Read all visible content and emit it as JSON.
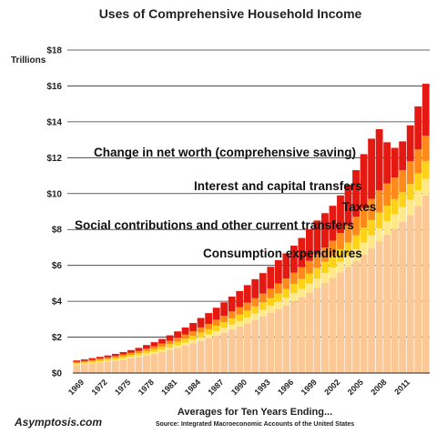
{
  "chart_data": {
    "type": "bar",
    "stacked": true,
    "title": "Uses of Comprehensive Household Income",
    "ylabel": "Trillions",
    "xlabel": "Averages for Ten Years Ending...",
    "source": "Source: Integrated Macroeconomic Accounts of the United States",
    "ylim": [
      0,
      18
    ],
    "yticks": [
      0,
      2,
      4,
      6,
      8,
      10,
      12,
      14,
      16,
      18
    ],
    "ytick_labels": [
      "$0",
      "$2",
      "$4",
      "$6",
      "$8",
      "$10",
      "$12",
      "$14",
      "$16",
      "$18"
    ],
    "grid": true,
    "categories": [
      "1969",
      "1970",
      "1971",
      "1972",
      "1973",
      "1974",
      "1975",
      "1976",
      "1977",
      "1978",
      "1979",
      "1980",
      "1981",
      "1982",
      "1983",
      "1984",
      "1985",
      "1986",
      "1987",
      "1988",
      "1989",
      "1990",
      "1991",
      "1992",
      "1993",
      "1994",
      "1995",
      "1996",
      "1997",
      "1998",
      "1999",
      "2000",
      "2001",
      "2002",
      "2003",
      "2004",
      "2005",
      "2006",
      "2007",
      "2008",
      "2009",
      "2010",
      "2011",
      "2012",
      "2013",
      "2014"
    ],
    "xtick_labels": [
      "1969",
      "1972",
      "1975",
      "1978",
      "1981",
      "1984",
      "1987",
      "1990",
      "1993",
      "1996",
      "1999",
      "2002",
      "2005",
      "2008",
      "2011"
    ],
    "series": [
      {
        "name": "Consumption expenditures",
        "color": "#fcc896",
        "values": [
          0.45,
          0.49,
          0.53,
          0.58,
          0.63,
          0.69,
          0.75,
          0.82,
          0.89,
          0.98,
          1.07,
          1.17,
          1.28,
          1.4,
          1.52,
          1.65,
          1.79,
          1.93,
          2.09,
          2.25,
          2.42,
          2.59,
          2.77,
          2.96,
          3.15,
          3.35,
          3.56,
          3.77,
          4.0,
          4.23,
          4.48,
          4.74,
          5.02,
          5.3,
          5.6,
          5.92,
          6.25,
          6.6,
          6.96,
          7.33,
          7.7,
          8.05,
          8.42,
          8.8,
          9.3,
          9.9
        ]
      },
      {
        "name": "Social contributions and other current transfers",
        "color": "#ffe88a",
        "values": [
          0.04,
          0.04,
          0.05,
          0.05,
          0.06,
          0.06,
          0.07,
          0.08,
          0.09,
          0.1,
          0.11,
          0.12,
          0.14,
          0.15,
          0.17,
          0.19,
          0.21,
          0.23,
          0.25,
          0.27,
          0.29,
          0.31,
          0.33,
          0.35,
          0.37,
          0.39,
          0.41,
          0.43,
          0.45,
          0.47,
          0.5,
          0.52,
          0.55,
          0.57,
          0.6,
          0.62,
          0.65,
          0.68,
          0.71,
          0.74,
          0.77,
          0.8,
          0.83,
          0.86,
          0.89,
          0.92
        ]
      },
      {
        "name": "Taxes",
        "color": "#ffd21a",
        "values": [
          0.07,
          0.08,
          0.08,
          0.09,
          0.1,
          0.11,
          0.11,
          0.12,
          0.13,
          0.15,
          0.16,
          0.18,
          0.19,
          0.21,
          0.22,
          0.24,
          0.26,
          0.28,
          0.3,
          0.32,
          0.34,
          0.36,
          0.38,
          0.4,
          0.42,
          0.44,
          0.47,
          0.49,
          0.52,
          0.54,
          0.57,
          0.6,
          0.63,
          0.66,
          0.7,
          0.74,
          0.78,
          0.82,
          0.86,
          0.88,
          0.86,
          0.84,
          0.84,
          0.88,
          0.94,
          1.0
        ]
      },
      {
        "name": "Interest and capital transfers",
        "color": "#ff8a1a",
        "values": [
          0.06,
          0.06,
          0.07,
          0.08,
          0.08,
          0.09,
          0.1,
          0.11,
          0.12,
          0.14,
          0.15,
          0.17,
          0.19,
          0.21,
          0.23,
          0.25,
          0.28,
          0.3,
          0.33,
          0.35,
          0.38,
          0.41,
          0.44,
          0.46,
          0.49,
          0.52,
          0.55,
          0.58,
          0.62,
          0.66,
          0.7,
          0.74,
          0.79,
          0.84,
          0.9,
          0.96,
          1.03,
          1.1,
          1.18,
          1.24,
          1.23,
          1.21,
          1.22,
          1.26,
          1.33,
          1.4
        ]
      },
      {
        "name": "Change in net worth (comprehensive saving)",
        "color": "#e41a12",
        "values": [
          0.08,
          0.09,
          0.1,
          0.1,
          0.11,
          0.12,
          0.14,
          0.15,
          0.17,
          0.19,
          0.23,
          0.26,
          0.3,
          0.35,
          0.4,
          0.46,
          0.53,
          0.6,
          0.67,
          0.75,
          0.83,
          0.9,
          0.98,
          1.06,
          1.14,
          1.22,
          1.3,
          1.4,
          1.51,
          1.63,
          1.76,
          1.9,
          1.92,
          1.95,
          2.1,
          2.25,
          2.6,
          3.0,
          3.35,
          3.4,
          2.3,
          1.65,
          1.6,
          2.0,
          2.4,
          2.9
        ]
      }
    ],
    "annotations": [
      {
        "text": "Change in net worth (comprehensive saving)"
      },
      {
        "text": "Interest and capital transfers"
      },
      {
        "text": "Taxes"
      },
      {
        "text": "Social contributions and other current transfers"
      },
      {
        "text": "Consumption expenditures"
      }
    ],
    "footer_brand": "Asymptosis.com"
  }
}
